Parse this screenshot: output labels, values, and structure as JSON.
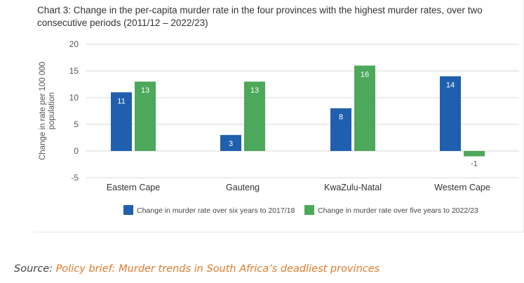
{
  "chart_data": {
    "type": "bar",
    "title": "Chart 3: Change in the per-capita murder rate in the four provinces with the highest murder rates, over two consecutive periods (2011/12 – 2022/23)",
    "ylabel": "Change in rate per 100 000 population",
    "xlabel": "",
    "categories": [
      "Eastern Cape",
      "Gauteng",
      "KwaZulu-Natal",
      "Western Cape"
    ],
    "ylim": [
      -5,
      20
    ],
    "yticks": [
      -5,
      0,
      5,
      10,
      15,
      20
    ],
    "grid": true,
    "legend_position": "bottom",
    "series": [
      {
        "name": "Change in murder rate over six years to 2017/18",
        "color": "#1f5fae",
        "values": [
          11,
          3,
          8,
          14
        ],
        "labels": [
          "11",
          "3",
          "8",
          "14"
        ]
      },
      {
        "name": "Change in murder rate over five years to 2022/23",
        "color": "#4ca85a",
        "values": [
          13,
          13,
          16,
          -1
        ],
        "labels": [
          "13",
          "13",
          "16",
          "-1"
        ]
      }
    ]
  },
  "source": {
    "prefix": "Source: ",
    "link_text": "Policy brief: Murder trends in South Africa’s deadliest provinces"
  }
}
